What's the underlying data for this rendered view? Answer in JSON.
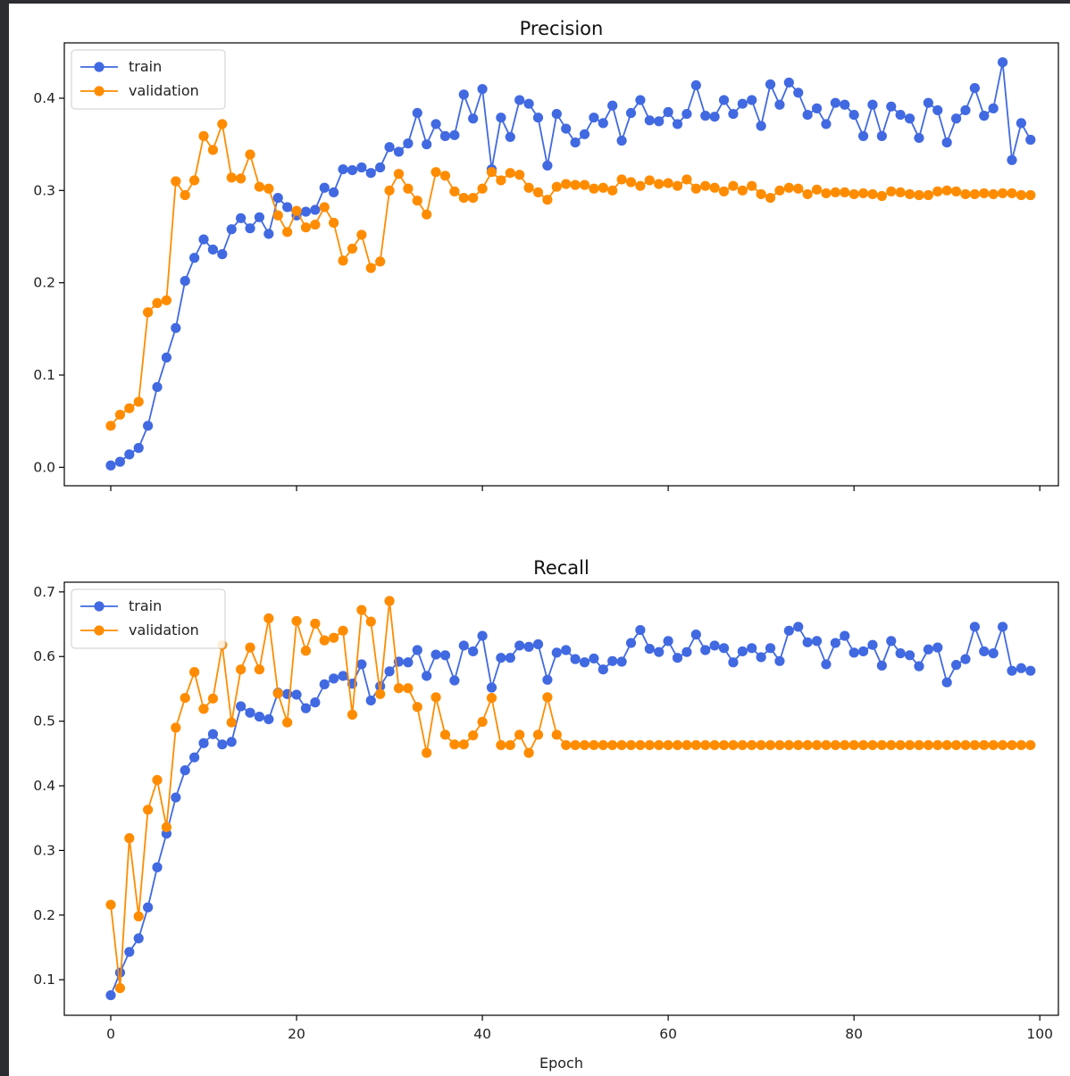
{
  "colors": {
    "train": "#4169e1",
    "validation": "#ff8c00"
  },
  "chart_data": [
    {
      "type": "line",
      "title": "Precision",
      "xlabel": "",
      "ylabel": "",
      "xlim": [
        -5,
        102
      ],
      "ylim": [
        -0.02,
        0.46
      ],
      "xticks": [
        0,
        20,
        40,
        60,
        80,
        100
      ],
      "xtick_labels_shown": false,
      "yticks": [
        0.0,
        0.1,
        0.2,
        0.3,
        0.4
      ],
      "ytick_labels": [
        "0.0",
        "0.1",
        "0.2",
        "0.3",
        "0.4"
      ],
      "legend": "top-left",
      "grid": false,
      "x": [
        0,
        1,
        2,
        3,
        4,
        5,
        6,
        7,
        8,
        9,
        10,
        11,
        12,
        13,
        14,
        15,
        16,
        17,
        18,
        19,
        20,
        21,
        22,
        23,
        24,
        25,
        26,
        27,
        28,
        29,
        30,
        31,
        32,
        33,
        34,
        35,
        36,
        37,
        38,
        39,
        40,
        41,
        42,
        43,
        44,
        45,
        46,
        47,
        48,
        49,
        50,
        51,
        52,
        53,
        54,
        55,
        56,
        57,
        58,
        59,
        60,
        61,
        62,
        63,
        64,
        65,
        66,
        67,
        68,
        69,
        70,
        71,
        72,
        73,
        74,
        75,
        76,
        77,
        78,
        79,
        80,
        81,
        82,
        83,
        84,
        85,
        86,
        87,
        88,
        89,
        90,
        91,
        92,
        93,
        94,
        95,
        96,
        97,
        98,
        99
      ],
      "series": [
        {
          "name": "train",
          "values": [
            0.002,
            0.006,
            0.014,
            0.021,
            0.045,
            0.087,
            0.119,
            0.151,
            0.202,
            0.227,
            0.247,
            0.236,
            0.231,
            0.258,
            0.27,
            0.259,
            0.271,
            0.253,
            0.292,
            0.282,
            0.273,
            0.277,
            0.279,
            0.303,
            0.298,
            0.323,
            0.322,
            0.325,
            0.319,
            0.325,
            0.347,
            0.342,
            0.351,
            0.384,
            0.35,
            0.372,
            0.359,
            0.36,
            0.404,
            0.378,
            0.41,
            0.323,
            0.379,
            0.358,
            0.398,
            0.394,
            0.379,
            0.327,
            0.383,
            0.367,
            0.352,
            0.361,
            0.379,
            0.373,
            0.392,
            0.354,
            0.384,
            0.398,
            0.376,
            0.375,
            0.385,
            0.372,
            0.383,
            0.414,
            0.381,
            0.38,
            0.398,
            0.383,
            0.394,
            0.398,
            0.37,
            0.415,
            0.393,
            0.417,
            0.406,
            0.382,
            0.389,
            0.372,
            0.395,
            0.393,
            0.382,
            0.359,
            0.393,
            0.359,
            0.391,
            0.382,
            0.378,
            0.357,
            0.395,
            0.387,
            0.352,
            0.378,
            0.387,
            0.411,
            0.381,
            0.389,
            0.439,
            0.333,
            0.373,
            0.355
          ]
        },
        {
          "name": "validation",
          "values": [
            0.045,
            0.057,
            0.064,
            0.071,
            0.168,
            0.178,
            0.181,
            0.31,
            0.295,
            0.311,
            0.359,
            0.344,
            0.372,
            0.314,
            0.313,
            0.339,
            0.304,
            0.302,
            0.273,
            0.255,
            0.278,
            0.26,
            0.263,
            0.282,
            0.265,
            0.224,
            0.237,
            0.252,
            0.216,
            0.223,
            0.3,
            0.318,
            0.302,
            0.289,
            0.274,
            0.32,
            0.316,
            0.299,
            0.292,
            0.292,
            0.302,
            0.32,
            0.311,
            0.319,
            0.317,
            0.303,
            0.298,
            0.29,
            0.304,
            0.307,
            0.306,
            0.306,
            0.302,
            0.303,
            0.3,
            0.312,
            0.309,
            0.305,
            0.311,
            0.307,
            0.308,
            0.305,
            0.312,
            0.302,
            0.305,
            0.303,
            0.299,
            0.305,
            0.3,
            0.305,
            0.296,
            0.292,
            0.3,
            0.303,
            0.302,
            0.296,
            0.301,
            0.297,
            0.298,
            0.298,
            0.296,
            0.297,
            0.296,
            0.294,
            0.299,
            0.298,
            0.296,
            0.295,
            0.295,
            0.299,
            0.3,
            0.299,
            0.296,
            0.296,
            0.297,
            0.296,
            0.297,
            0.297,
            0.295,
            0.295
          ]
        }
      ]
    },
    {
      "type": "line",
      "title": "Recall",
      "xlabel": "Epoch",
      "ylabel": "",
      "xlim": [
        -5,
        102
      ],
      "ylim": [
        0.045,
        0.715
      ],
      "xticks": [
        0,
        20,
        40,
        60,
        80,
        100
      ],
      "xtick_labels": [
        "0",
        "20",
        "40",
        "60",
        "80",
        "100"
      ],
      "yticks": [
        0.1,
        0.2,
        0.3,
        0.4,
        0.5,
        0.6,
        0.7
      ],
      "ytick_labels": [
        "0.1",
        "0.2",
        "0.3",
        "0.4",
        "0.5",
        "0.6",
        "0.7"
      ],
      "legend": "top-left",
      "grid": false,
      "x": [
        0,
        1,
        2,
        3,
        4,
        5,
        6,
        7,
        8,
        9,
        10,
        11,
        12,
        13,
        14,
        15,
        16,
        17,
        18,
        19,
        20,
        21,
        22,
        23,
        24,
        25,
        26,
        27,
        28,
        29,
        30,
        31,
        32,
        33,
        34,
        35,
        36,
        37,
        38,
        39,
        40,
        41,
        42,
        43,
        44,
        45,
        46,
        47,
        48,
        49,
        50,
        51,
        52,
        53,
        54,
        55,
        56,
        57,
        58,
        59,
        60,
        61,
        62,
        63,
        64,
        65,
        66,
        67,
        68,
        69,
        70,
        71,
        72,
        73,
        74,
        75,
        76,
        77,
        78,
        79,
        80,
        81,
        82,
        83,
        84,
        85,
        86,
        87,
        88,
        89,
        90,
        91,
        92,
        93,
        94,
        95,
        96,
        97,
        98,
        99
      ],
      "series": [
        {
          "name": "train",
          "values": [
            0.076,
            0.111,
            0.143,
            0.164,
            0.212,
            0.274,
            0.326,
            0.382,
            0.424,
            0.444,
            0.466,
            0.48,
            0.464,
            0.468,
            0.523,
            0.513,
            0.507,
            0.503,
            0.544,
            0.542,
            0.541,
            0.52,
            0.529,
            0.557,
            0.566,
            0.57,
            0.558,
            0.588,
            0.532,
            0.554,
            0.577,
            0.592,
            0.591,
            0.61,
            0.57,
            0.603,
            0.602,
            0.563,
            0.617,
            0.608,
            0.632,
            0.552,
            0.598,
            0.598,
            0.617,
            0.615,
            0.619,
            0.564,
            0.606,
            0.61,
            0.596,
            0.591,
            0.597,
            0.58,
            0.593,
            0.592,
            0.621,
            0.641,
            0.612,
            0.607,
            0.624,
            0.598,
            0.607,
            0.634,
            0.61,
            0.617,
            0.613,
            0.591,
            0.608,
            0.613,
            0.599,
            0.613,
            0.593,
            0.64,
            0.646,
            0.622,
            0.624,
            0.588,
            0.621,
            0.632,
            0.606,
            0.608,
            0.618,
            0.586,
            0.624,
            0.605,
            0.602,
            0.585,
            0.611,
            0.614,
            0.56,
            0.587,
            0.596,
            0.646,
            0.608,
            0.605,
            0.646,
            0.578,
            0.582,
            0.578
          ]
        },
        {
          "name": "validation",
          "values": [
            0.216,
            0.087,
            0.319,
            0.198,
            0.363,
            0.409,
            0.336,
            0.49,
            0.536,
            0.576,
            0.519,
            0.535,
            0.618,
            0.498,
            0.58,
            0.614,
            0.58,
            0.659,
            0.543,
            0.498,
            0.655,
            0.609,
            0.651,
            0.625,
            0.629,
            0.64,
            0.51,
            0.672,
            0.654,
            0.542,
            0.686,
            0.551,
            0.551,
            0.522,
            0.451,
            0.537,
            0.479,
            0.464,
            0.464,
            0.478,
            0.499,
            0.536,
            0.463,
            0.463,
            0.479,
            0.451,
            0.479,
            0.537,
            0.479,
            0.463,
            0.463,
            0.463,
            0.463,
            0.463,
            0.463,
            0.463,
            0.463,
            0.463,
            0.463,
            0.463,
            0.463,
            0.463,
            0.463,
            0.463,
            0.463,
            0.463,
            0.463,
            0.463,
            0.463,
            0.463,
            0.463,
            0.463,
            0.463,
            0.463,
            0.463,
            0.463,
            0.463,
            0.463,
            0.463,
            0.463,
            0.463,
            0.463,
            0.463,
            0.463,
            0.463,
            0.463,
            0.463,
            0.463,
            0.463,
            0.463,
            0.463,
            0.463,
            0.463,
            0.463,
            0.463,
            0.463,
            0.463,
            0.463,
            0.463,
            0.463
          ]
        }
      ]
    }
  ]
}
